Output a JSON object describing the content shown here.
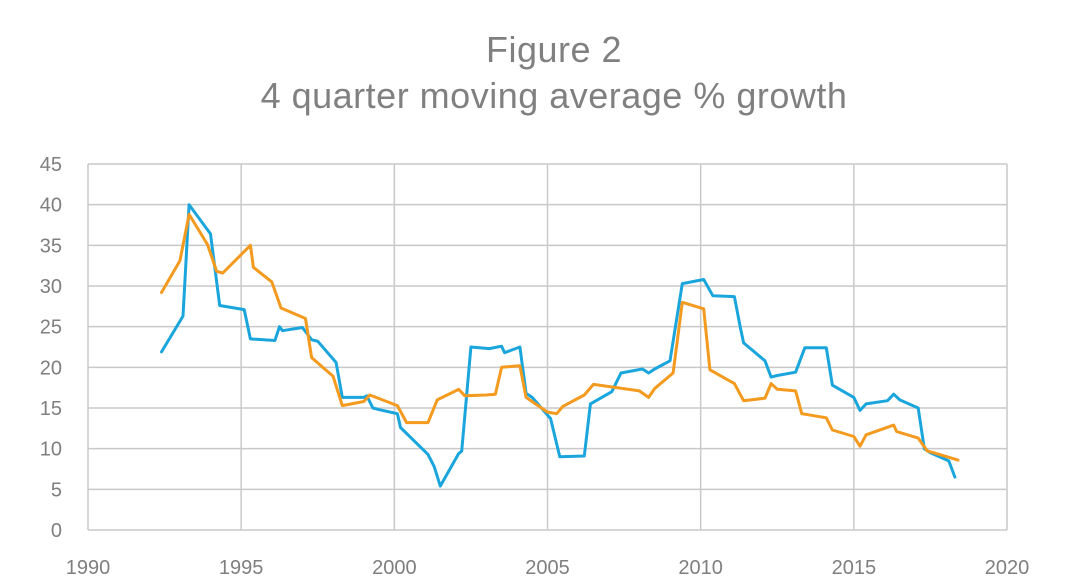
{
  "title_line_1": "Figure 2",
  "title_line_2": "4 quarter moving average % growth",
  "chart_data": {
    "type": "line",
    "title": "Figure 2 4 quarter moving average % growth",
    "xlabel": "",
    "ylabel": "",
    "xlim": [
      1990,
      2020
    ],
    "ylim": [
      0,
      45
    ],
    "x_ticks": [
      1990,
      1995,
      2000,
      2005,
      2010,
      2015,
      2020
    ],
    "y_ticks": [
      0,
      5,
      10,
      15,
      20,
      25,
      30,
      35,
      40,
      45
    ],
    "grid": true,
    "legend": "none",
    "series": [
      {
        "color": "#1aa6dc",
        "points": [
          [
            1992.4,
            21.9
          ],
          [
            1993.1,
            26.3
          ],
          [
            1993.3,
            40.0
          ],
          [
            1994.0,
            36.4
          ],
          [
            1994.3,
            27.6
          ],
          [
            1995.1,
            27.1
          ],
          [
            1995.3,
            23.5
          ],
          [
            1996.1,
            23.3
          ],
          [
            1996.25,
            25.0
          ],
          [
            1996.35,
            24.5
          ],
          [
            1997.0,
            24.9
          ],
          [
            1997.3,
            23.4
          ],
          [
            1997.5,
            23.2
          ],
          [
            1998.1,
            20.6
          ],
          [
            1998.3,
            16.3
          ],
          [
            1999.0,
            16.3
          ],
          [
            1999.1,
            16.5
          ],
          [
            1999.3,
            15.0
          ],
          [
            1999.5,
            14.8
          ],
          [
            2000.1,
            14.3
          ],
          [
            2000.2,
            12.6
          ],
          [
            2001.1,
            9.3
          ],
          [
            2001.3,
            7.8
          ],
          [
            2001.5,
            5.4
          ],
          [
            2002.1,
            9.4
          ],
          [
            2002.2,
            9.7
          ],
          [
            2002.5,
            22.5
          ],
          [
            2003.1,
            22.3
          ],
          [
            2003.5,
            22.6
          ],
          [
            2003.6,
            21.8
          ],
          [
            2004.1,
            22.5
          ],
          [
            2004.3,
            16.8
          ],
          [
            2004.5,
            16.3
          ],
          [
            2005.1,
            13.7
          ],
          [
            2005.4,
            9.0
          ],
          [
            2006.2,
            9.1
          ],
          [
            2006.4,
            15.5
          ],
          [
            2007.1,
            17.0
          ],
          [
            2007.4,
            19.3
          ],
          [
            2008.1,
            19.8
          ],
          [
            2008.3,
            19.3
          ],
          [
            2008.5,
            19.8
          ],
          [
            2009.0,
            20.8
          ],
          [
            2009.4,
            30.3
          ],
          [
            2010.1,
            30.8
          ],
          [
            2010.4,
            28.8
          ],
          [
            2011.1,
            28.7
          ],
          [
            2011.3,
            24.8
          ],
          [
            2011.4,
            23.0
          ],
          [
            2012.1,
            20.8
          ],
          [
            2012.3,
            18.8
          ],
          [
            2012.5,
            19.0
          ],
          [
            2013.1,
            19.4
          ],
          [
            2013.4,
            22.4
          ],
          [
            2014.1,
            22.4
          ],
          [
            2014.3,
            17.8
          ],
          [
            2015.0,
            16.3
          ],
          [
            2015.2,
            14.7
          ],
          [
            2015.4,
            15.5
          ],
          [
            2016.1,
            15.9
          ],
          [
            2016.3,
            16.7
          ],
          [
            2016.5,
            16.0
          ],
          [
            2017.1,
            15.0
          ],
          [
            2017.3,
            10.0
          ],
          [
            2017.5,
            9.5
          ],
          [
            2018.1,
            8.5
          ],
          [
            2018.3,
            6.5
          ]
        ]
      },
      {
        "color": "#f39a1f",
        "points": [
          [
            1992.4,
            29.2
          ],
          [
            1993.0,
            33.1
          ],
          [
            1993.3,
            38.8
          ],
          [
            1993.9,
            35.1
          ],
          [
            1994.2,
            31.8
          ],
          [
            1994.4,
            31.6
          ],
          [
            1995.3,
            35.0
          ],
          [
            1995.4,
            32.3
          ],
          [
            1996.0,
            30.5
          ],
          [
            1996.3,
            27.3
          ],
          [
            1997.1,
            26.0
          ],
          [
            1997.3,
            21.2
          ],
          [
            1998.0,
            18.9
          ],
          [
            1998.3,
            15.3
          ],
          [
            1999.0,
            15.8
          ],
          [
            1999.2,
            16.6
          ],
          [
            2000.1,
            15.3
          ],
          [
            2000.4,
            13.2
          ],
          [
            2001.1,
            13.2
          ],
          [
            2001.4,
            16.0
          ],
          [
            2002.1,
            17.3
          ],
          [
            2002.3,
            16.5
          ],
          [
            2003.0,
            16.6
          ],
          [
            2003.3,
            16.7
          ],
          [
            2003.5,
            20.0
          ],
          [
            2003.8,
            20.1
          ],
          [
            2004.1,
            20.2
          ],
          [
            2004.3,
            16.3
          ],
          [
            2005.0,
            14.5
          ],
          [
            2005.3,
            14.3
          ],
          [
            2005.5,
            15.2
          ],
          [
            2006.2,
            16.6
          ],
          [
            2006.5,
            17.9
          ],
          [
            2008.0,
            17.1
          ],
          [
            2008.3,
            16.3
          ],
          [
            2008.5,
            17.4
          ],
          [
            2009.1,
            19.3
          ],
          [
            2009.4,
            28.0
          ],
          [
            2010.1,
            27.2
          ],
          [
            2010.3,
            19.7
          ],
          [
            2011.1,
            18.0
          ],
          [
            2011.4,
            15.9
          ],
          [
            2012.1,
            16.2
          ],
          [
            2012.3,
            18.0
          ],
          [
            2012.5,
            17.3
          ],
          [
            2013.1,
            17.1
          ],
          [
            2013.3,
            14.3
          ],
          [
            2014.1,
            13.8
          ],
          [
            2014.3,
            12.3
          ],
          [
            2015.0,
            11.5
          ],
          [
            2015.2,
            10.3
          ],
          [
            2015.4,
            11.7
          ],
          [
            2016.3,
            12.9
          ],
          [
            2016.4,
            12.1
          ],
          [
            2017.1,
            11.3
          ],
          [
            2017.4,
            9.7
          ],
          [
            2017.6,
            9.5
          ],
          [
            2018.4,
            8.6
          ]
        ]
      }
    ]
  }
}
